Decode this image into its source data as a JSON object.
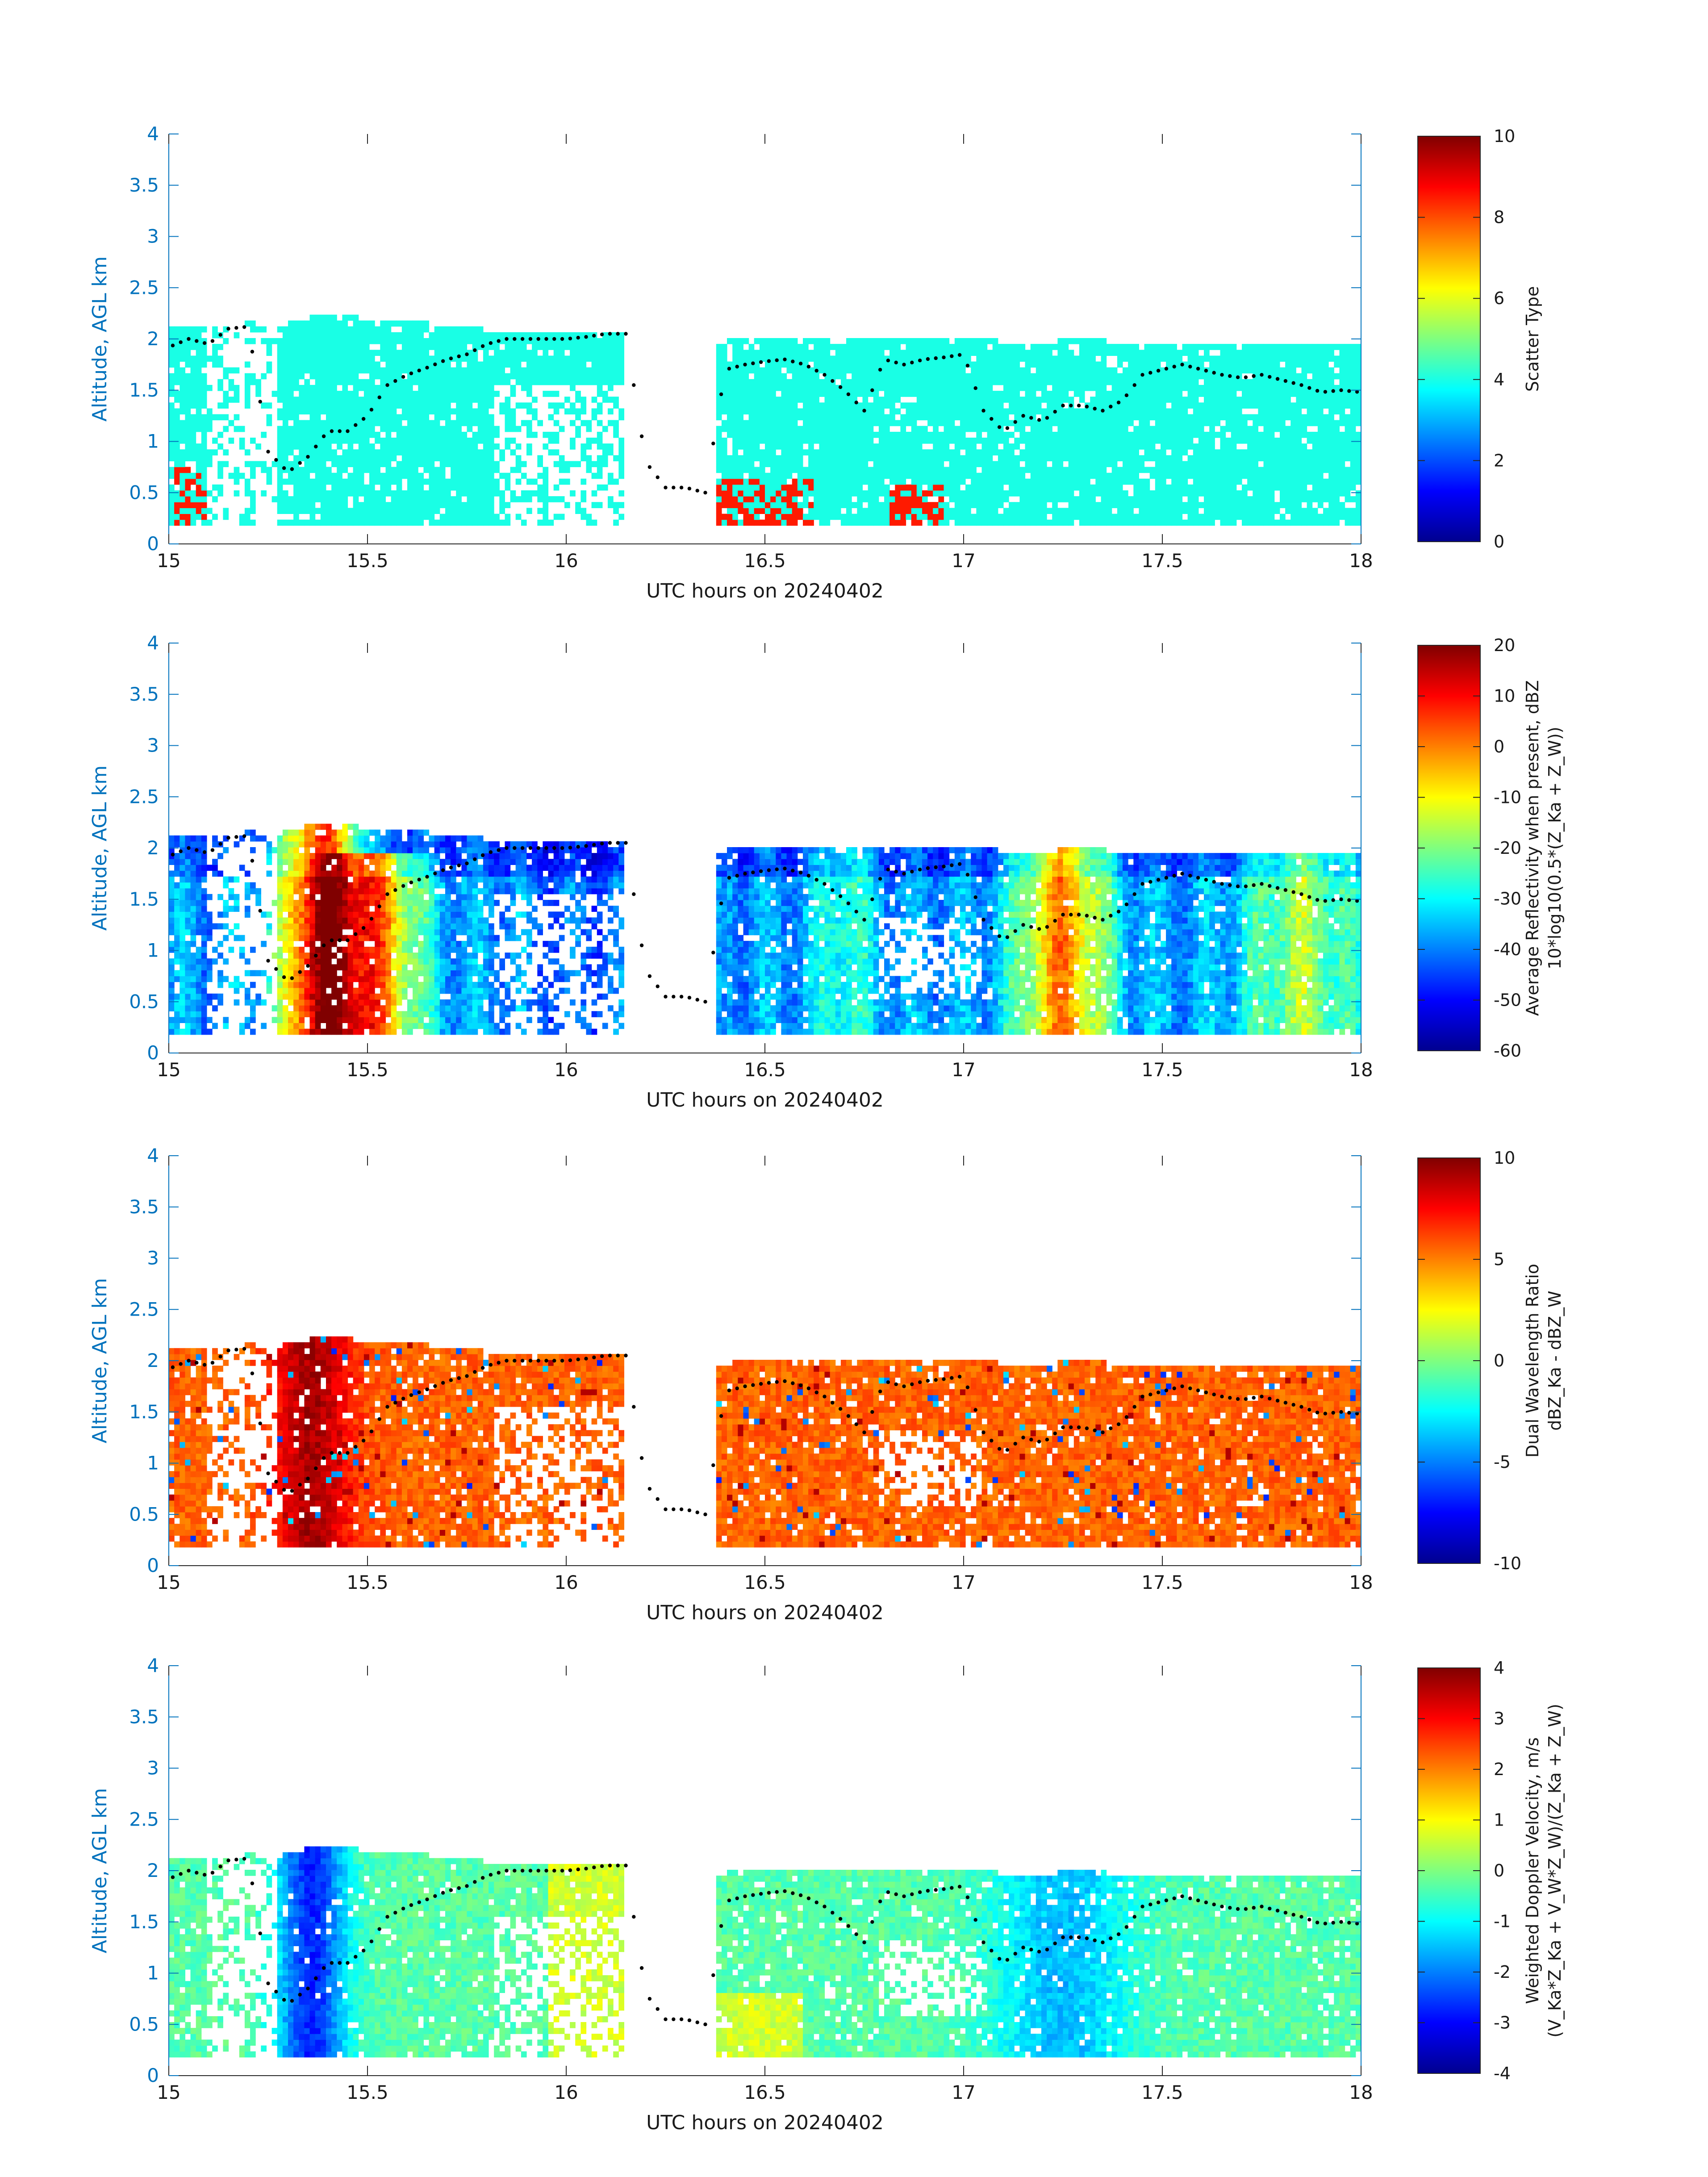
{
  "figure": {
    "xlabel": "UTC hours on 20240402",
    "ylabel": "Altitude, AGL km",
    "colors": {
      "axis": "#262626",
      "right_axis": "#0072BD",
      "ylabel": "#0072BD",
      "track": "#000000"
    }
  },
  "chart_data": [
    {
      "type": "heatmap",
      "id": "scatter",
      "xlim": [
        15,
        18
      ],
      "ylim": [
        0,
        4
      ],
      "xticks": [
        "15",
        "15.5",
        "16",
        "16.5",
        "17",
        "17.5",
        "18"
      ],
      "yticks": [
        "0",
        "0.5",
        "1",
        "1.5",
        "2",
        "2.5",
        "3",
        "3.5",
        "4"
      ],
      "xlabel": "UTC hours on 20240402",
      "ylabel": "Altitude, AGL km",
      "colorbar": {
        "label_lines": [
          "Scatter Type"
        ],
        "range": [
          0,
          10
        ],
        "ticks": [
          "0",
          "2",
          "4",
          "6",
          "8",
          "10"
        ]
      },
      "dominant_value": 4
    },
    {
      "type": "heatmap",
      "id": "reflectivity",
      "xlim": [
        15,
        18
      ],
      "ylim": [
        0,
        4
      ],
      "xticks": [
        "15",
        "15.5",
        "16",
        "16.5",
        "17",
        "17.5",
        "18"
      ],
      "yticks": [
        "0",
        "0.5",
        "1",
        "1.5",
        "2",
        "2.5",
        "3",
        "3.5",
        "4"
      ],
      "xlabel": "UTC hours on 20240402",
      "ylabel": "Altitude, AGL km",
      "colorbar": {
        "label_lines": [
          "Average Reflectivity when present, dBZ",
          "10*log10(0.5*(Z_Ka + Z_W))"
        ],
        "range": [
          -60,
          20
        ],
        "ticks": [
          "-60",
          "-50",
          "-40",
          "-30",
          "-20",
          "-10",
          "0",
          "10",
          "20"
        ]
      }
    },
    {
      "type": "heatmap",
      "id": "dwr",
      "xlim": [
        15,
        18
      ],
      "ylim": [
        0,
        4
      ],
      "xticks": [
        "15",
        "15.5",
        "16",
        "16.5",
        "17",
        "17.5",
        "18"
      ],
      "yticks": [
        "0",
        "0.5",
        "1",
        "1.5",
        "2",
        "2.5",
        "3",
        "3.5",
        "4"
      ],
      "xlabel": "UTC hours on 20240402",
      "ylabel": "Altitude, AGL km",
      "colorbar": {
        "label_lines": [
          "Dual Wavelength Ratio",
          "dBZ_Ka - dBZ_W"
        ],
        "range": [
          -10,
          10
        ],
        "ticks": [
          "-10",
          "-5",
          "0",
          "5",
          "10"
        ]
      }
    },
    {
      "type": "heatmap",
      "id": "doppler",
      "xlim": [
        15,
        18
      ],
      "ylim": [
        0,
        4
      ],
      "xticks": [
        "15",
        "15.5",
        "16",
        "16.5",
        "17",
        "17.5",
        "18"
      ],
      "yticks": [
        "0",
        "0.5",
        "1",
        "1.5",
        "2",
        "2.5",
        "3",
        "3.5",
        "4"
      ],
      "xlabel": "UTC hours on 20240402",
      "ylabel": "Altitude, AGL km",
      "colorbar": {
        "label_lines": [
          "Weighted Doppler Velocity, m/s",
          "(V_Ka*Z_Ka + V_W*Z_W)/(Z_Ka + Z_W)"
        ],
        "range": [
          -4,
          4
        ],
        "ticks": [
          "-4",
          "-3",
          "-2",
          "-1",
          "0",
          "1",
          "2",
          "3",
          "4"
        ]
      }
    }
  ],
  "cloud": {
    "top_km": [
      [
        15.0,
        2.15
      ],
      [
        15.1,
        2.15
      ],
      [
        15.2,
        2.25
      ],
      [
        15.27,
        2.15
      ],
      [
        15.3,
        2.2
      ],
      [
        15.4,
        2.28
      ],
      [
        15.5,
        2.22
      ],
      [
        15.6,
        2.22
      ],
      [
        15.7,
        2.15
      ],
      [
        15.8,
        2.12
      ],
      [
        15.9,
        2.12
      ],
      [
        16.0,
        2.12
      ],
      [
        16.1,
        2.1
      ],
      [
        16.15,
        2.1
      ],
      [
        16.17,
        null
      ],
      [
        16.37,
        null
      ],
      [
        16.38,
        2.0
      ],
      [
        16.5,
        2.05
      ],
      [
        16.6,
        2.05
      ],
      [
        16.7,
        2.05
      ],
      [
        16.8,
        2.05
      ],
      [
        16.9,
        2.05
      ],
      [
        17.0,
        2.05
      ],
      [
        17.1,
        2.0
      ],
      [
        17.2,
        2.0
      ],
      [
        17.3,
        2.02
      ],
      [
        17.4,
        2.0
      ],
      [
        17.5,
        2.0
      ],
      [
        17.6,
        2.0
      ],
      [
        17.7,
        2.0
      ],
      [
        17.8,
        2.0
      ],
      [
        17.9,
        2.0
      ],
      [
        18.0,
        2.0
      ]
    ],
    "base_km": 0.18
  },
  "track": {
    "height_km": [
      [
        15.0,
        1.92
      ],
      [
        15.05,
        2.0
      ],
      [
        15.1,
        1.95
      ],
      [
        15.15,
        2.1
      ],
      [
        15.2,
        2.12
      ],
      [
        15.25,
        0.9
      ],
      [
        15.3,
        0.7
      ],
      [
        15.35,
        0.85
      ],
      [
        15.4,
        1.1
      ],
      [
        15.45,
        1.1
      ],
      [
        15.5,
        1.25
      ],
      [
        15.55,
        1.55
      ],
      [
        15.6,
        1.65
      ],
      [
        15.65,
        1.72
      ],
      [
        15.7,
        1.8
      ],
      [
        15.75,
        1.85
      ],
      [
        15.8,
        1.95
      ],
      [
        15.85,
        2.0
      ],
      [
        15.9,
        2.0
      ],
      [
        15.95,
        2.0
      ],
      [
        16.0,
        2.0
      ],
      [
        16.05,
        2.02
      ],
      [
        16.1,
        2.05
      ],
      [
        16.15,
        2.05
      ],
      [
        16.2,
        0.8
      ],
      [
        16.25,
        0.55
      ],
      [
        16.3,
        0.55
      ],
      [
        16.35,
        0.5
      ],
      [
        16.4,
        1.7
      ],
      [
        16.45,
        1.75
      ],
      [
        16.5,
        1.78
      ],
      [
        16.55,
        1.8
      ],
      [
        16.6,
        1.75
      ],
      [
        16.65,
        1.65
      ],
      [
        16.7,
        1.5
      ],
      [
        16.75,
        1.3
      ],
      [
        16.8,
        1.8
      ],
      [
        16.85,
        1.75
      ],
      [
        16.9,
        1.8
      ],
      [
        16.95,
        1.82
      ],
      [
        17.0,
        1.85
      ],
      [
        17.05,
        1.3
      ],
      [
        17.1,
        1.1
      ],
      [
        17.15,
        1.25
      ],
      [
        17.2,
        1.2
      ],
      [
        17.25,
        1.35
      ],
      [
        17.3,
        1.35
      ],
      [
        17.35,
        1.3
      ],
      [
        17.4,
        1.4
      ],
      [
        17.45,
        1.65
      ],
      [
        17.5,
        1.7
      ],
      [
        17.55,
        1.75
      ],
      [
        17.6,
        1.7
      ],
      [
        17.65,
        1.65
      ],
      [
        17.7,
        1.62
      ],
      [
        17.75,
        1.65
      ],
      [
        17.8,
        1.6
      ],
      [
        17.85,
        1.55
      ],
      [
        17.9,
        1.48
      ],
      [
        17.95,
        1.5
      ],
      [
        18.0,
        1.48
      ]
    ]
  }
}
